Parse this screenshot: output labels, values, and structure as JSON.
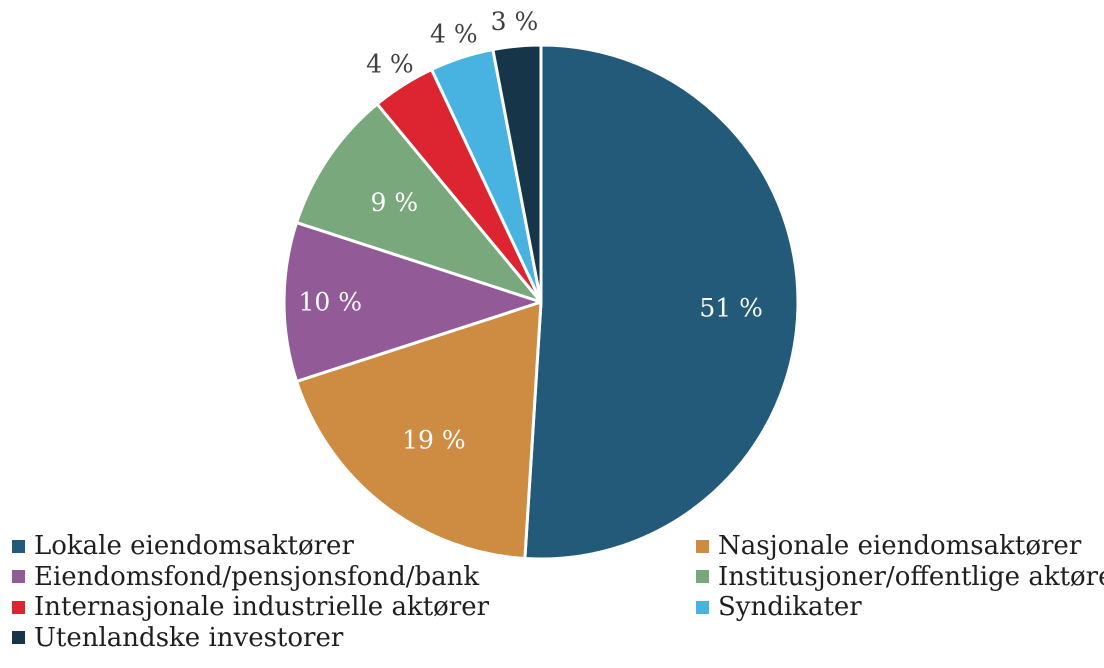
{
  "chart_data": {
    "type": "pie",
    "title": "",
    "slices": [
      {
        "name": "Lokale eiendomsaktører",
        "value": 51,
        "label": "51 %",
        "color": "#235a7a"
      },
      {
        "name": "Nasjonale eiendomsaktører",
        "value": 19,
        "label": "19 %",
        "color": "#cd8c42"
      },
      {
        "name": "Eiendomsfond/pensjonsfond/bank",
        "value": 10,
        "label": "10 %",
        "color": "#925a97"
      },
      {
        "name": "Institusjoner/offentlige aktører",
        "value": 9,
        "label": "9 %",
        "color": "#79a87c"
      },
      {
        "name": "Internasjonale industrielle aktører",
        "value": 4,
        "label": "4 %",
        "color": "#dc2530"
      },
      {
        "name": "Syndikater",
        "value": 4,
        "label": "4 %",
        "color": "#48b3e1"
      },
      {
        "name": "Utenlandske investorer",
        "value": 3,
        "label": "3 %",
        "color": "#173548"
      }
    ],
    "legend_placement": "bottom"
  }
}
